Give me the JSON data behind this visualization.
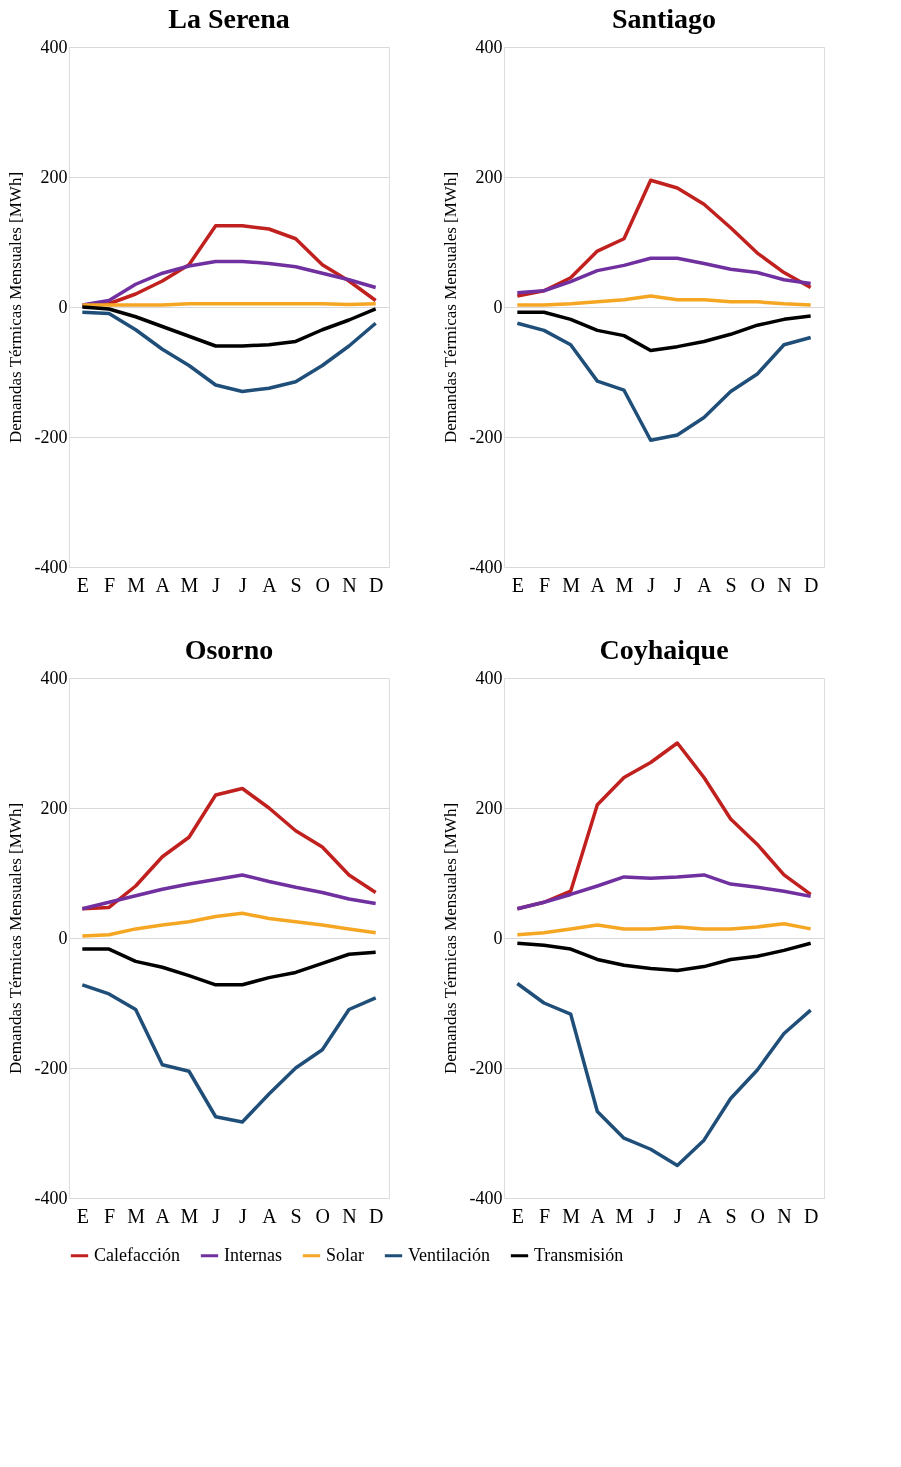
{
  "chart_data": [
    {
      "type": "line",
      "title": "La Serena",
      "ylabel": "Demandas Térmicas Mensuales [MWh]",
      "categories": [
        "E",
        "F",
        "M",
        "A",
        "M",
        "J",
        "J",
        "A",
        "S",
        "O",
        "N",
        "D"
      ],
      "ylim": [
        -400,
        400
      ],
      "yticks": [
        -400,
        -200,
        0,
        200,
        400
      ],
      "grid": "y",
      "legend": "bottom",
      "line_style": "solid",
      "series": [
        {
          "name": "Calefacción",
          "color": "#c0201e",
          "values": [
            2,
            5,
            20,
            40,
            65,
            125,
            125,
            120,
            105,
            65,
            40,
            10
          ]
        },
        {
          "name": "Internas",
          "color": "#7030a0",
          "values": [
            3,
            10,
            35,
            52,
            63,
            70,
            70,
            67,
            62,
            52,
            42,
            30
          ]
        },
        {
          "name": "Solar",
          "color": "#f5a623",
          "values": [
            3,
            3,
            3,
            3,
            5,
            5,
            5,
            5,
            5,
            5,
            4,
            5
          ]
        },
        {
          "name": "Ventilación",
          "color": "#1f4e79",
          "values": [
            -8,
            -10,
            -35,
            -65,
            -90,
            -120,
            -130,
            -125,
            -115,
            -90,
            -60,
            -25
          ]
        },
        {
          "name": "Transmisión",
          "color": "#000000",
          "values": [
            0,
            -3,
            -15,
            -30,
            -45,
            -60,
            -60,
            -58,
            -53,
            -35,
            -20,
            -3
          ]
        }
      ]
    },
    {
      "type": "line",
      "title": "Santiago",
      "ylabel": "Demandas Térmicas Mensuales [MWh]",
      "categories": [
        "E",
        "F",
        "M",
        "A",
        "M",
        "J",
        "J",
        "A",
        "S",
        "O",
        "N",
        "D"
      ],
      "ylim": [
        -400,
        400
      ],
      "yticks": [
        -400,
        -200,
        0,
        200,
        400
      ],
      "grid": "y",
      "legend": "bottom",
      "line_style": "solid",
      "series": [
        {
          "name": "Calefacción",
          "color": "#c0201e",
          "values": [
            17,
            25,
            45,
            86,
            105,
            195,
            183,
            158,
            122,
            83,
            53,
            30
          ]
        },
        {
          "name": "Internas",
          "color": "#7030a0",
          "values": [
            22,
            25,
            39,
            56,
            64,
            75,
            75,
            67,
            58,
            53,
            42,
            36
          ]
        },
        {
          "name": "Solar",
          "color": "#f5a623",
          "values": [
            3,
            3,
            5,
            8,
            11,
            17,
            11,
            11,
            8,
            8,
            5,
            3
          ]
        },
        {
          "name": "Ventilación",
          "color": "#1f4e79",
          "values": [
            -25,
            -36,
            -58,
            -114,
            -128,
            -205,
            -197,
            -170,
            -130,
            -103,
            -58,
            -47
          ]
        },
        {
          "name": "Transmisión",
          "color": "#000000",
          "values": [
            -8,
            -8,
            -19,
            -36,
            -44,
            -67,
            -61,
            -53,
            -42,
            -28,
            -19,
            -14
          ]
        }
      ]
    },
    {
      "type": "line",
      "title": "Osorno",
      "ylabel": "Demandas Térmicas Mensuales [MWh]",
      "categories": [
        "E",
        "F",
        "M",
        "A",
        "M",
        "J",
        "J",
        "A",
        "S",
        "O",
        "N",
        "D"
      ],
      "ylim": [
        -400,
        400
      ],
      "yticks": [
        -400,
        -200,
        0,
        200,
        400
      ],
      "grid": "y",
      "legend": "bottom",
      "line_style": "solid",
      "series": [
        {
          "name": "Calefacción",
          "color": "#c0201e",
          "values": [
            45,
            47,
            80,
            125,
            155,
            220,
            230,
            200,
            165,
            140,
            97,
            70
          ]
        },
        {
          "name": "Internas",
          "color": "#7030a0",
          "values": [
            45,
            55,
            65,
            75,
            83,
            90,
            97,
            87,
            78,
            70,
            60,
            53
          ]
        },
        {
          "name": "Solar",
          "color": "#f5a623",
          "values": [
            3,
            5,
            14,
            20,
            25,
            33,
            38,
            30,
            25,
            20,
            14,
            8
          ]
        },
        {
          "name": "Ventilación",
          "color": "#1f4e79",
          "values": [
            -72,
            -86,
            -110,
            -195,
            -205,
            -275,
            -283,
            -240,
            -200,
            -172,
            -110,
            -92
          ]
        },
        {
          "name": "Transmisión",
          "color": "#000000",
          "values": [
            -17,
            -17,
            -36,
            -45,
            -58,
            -72,
            -72,
            -61,
            -53,
            -39,
            -25,
            -22
          ]
        }
      ]
    },
    {
      "type": "line",
      "title": "Coyhaique",
      "ylabel": "Demandas Térmicas Mensuales [MWh]",
      "categories": [
        "E",
        "F",
        "M",
        "A",
        "M",
        "J",
        "J",
        "A",
        "S",
        "O",
        "N",
        "D"
      ],
      "ylim": [
        -400,
        400
      ],
      "yticks": [
        -400,
        -200,
        0,
        200,
        400
      ],
      "grid": "y",
      "legend": "bottom",
      "line_style": "solid",
      "series": [
        {
          "name": "Calefacción",
          "color": "#c0201e",
          "values": [
            45,
            55,
            72,
            205,
            247,
            270,
            300,
            247,
            183,
            144,
            97,
            67
          ]
        },
        {
          "name": "Internas",
          "color": "#7030a0",
          "values": [
            45,
            55,
            67,
            80,
            94,
            92,
            94,
            97,
            83,
            78,
            72,
            64
          ]
        },
        {
          "name": "Solar",
          "color": "#f5a623",
          "values": [
            5,
            8,
            14,
            20,
            14,
            14,
            17,
            14,
            14,
            17,
            22,
            14
          ]
        },
        {
          "name": "Ventilación",
          "color": "#1f4e79",
          "values": [
            -70,
            -100,
            -117,
            -267,
            -308,
            -325,
            -350,
            -311,
            -247,
            -203,
            -147,
            -111
          ]
        },
        {
          "name": "Transmisión",
          "color": "#000000",
          "values": [
            -8,
            -11,
            -17,
            -33,
            -42,
            -47,
            -50,
            -44,
            -33,
            -28,
            -19,
            -8
          ]
        }
      ]
    }
  ]
}
